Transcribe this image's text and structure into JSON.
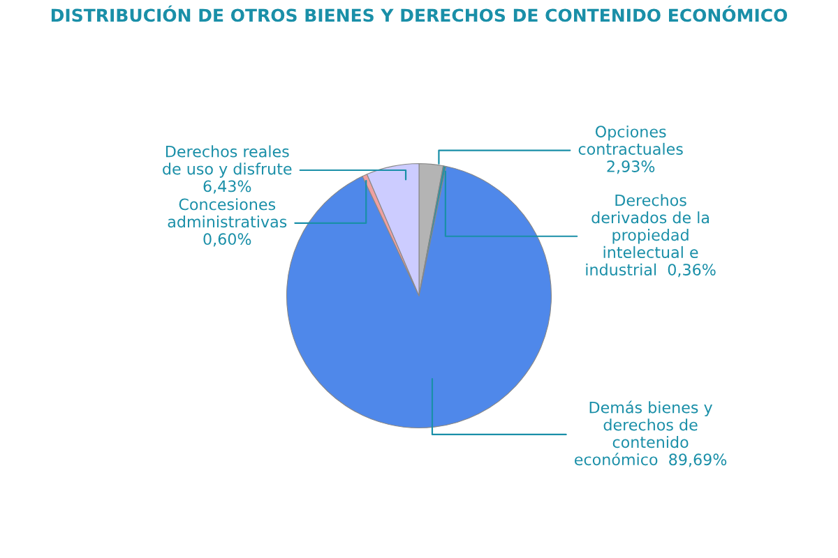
{
  "chart_data": {
    "type": "pie",
    "title": "DISTRIBUCIÓN DE OTROS BIENES Y DERECHOS DE CONTENIDO ECONÓMICO",
    "categories": [
      "Opciones\ncontractuales",
      "Derechos\nderivados de la\npropiedad\nintelectual e\nindustrial",
      "Demás bienes y\nderechos de\ncontenido\neconómico",
      "Concesiones\nadministrativas",
      "Derechos reales\nde uso y disfrute"
    ],
    "values": [
      2.93,
      0.36,
      89.69,
      0.6,
      6.43
    ],
    "value_labels": [
      "2,93%",
      "0,36%",
      "89,69%",
      "0,60%",
      "6,43%"
    ],
    "colors": [
      "#b4b4b4",
      "#2f8f9f",
      "#4f88ea",
      "#f0a0a0",
      "#ccccff"
    ],
    "legend": false
  }
}
